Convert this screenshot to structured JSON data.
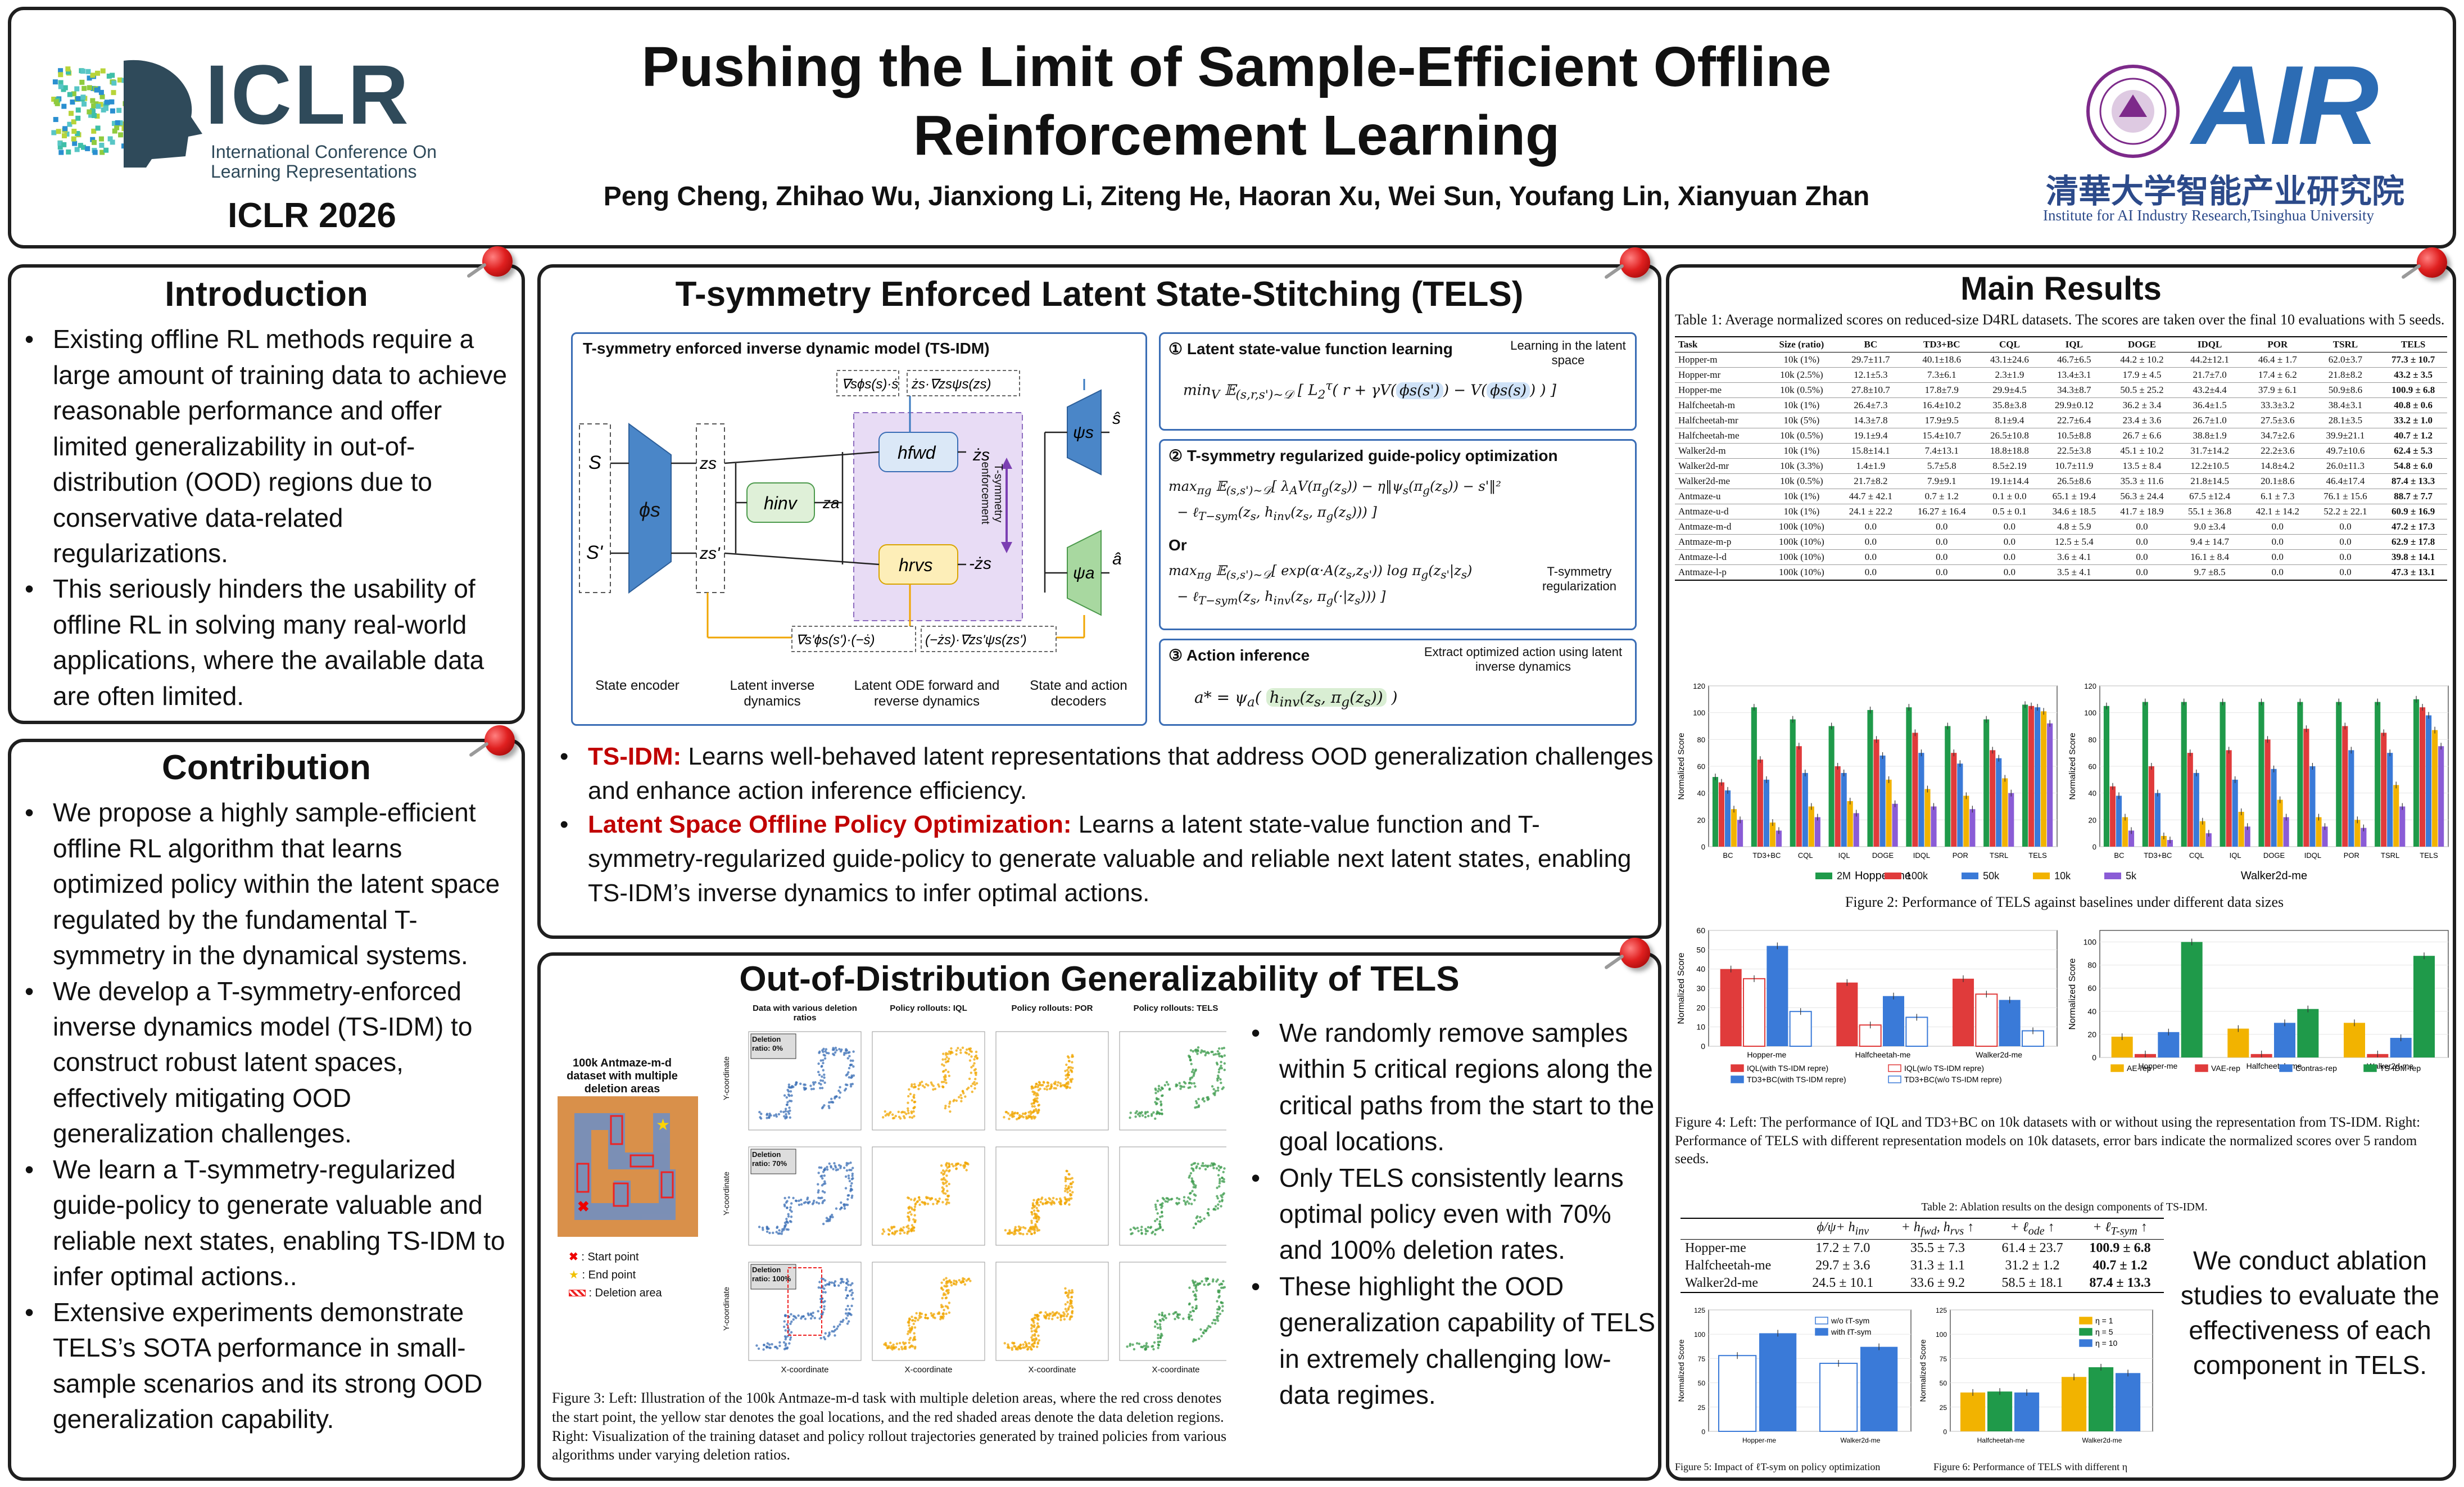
{
  "header": {
    "iclr_logo_text": "ICLR",
    "iclr_logo_sub": "International Conference On Learning Representations",
    "conference": "ICLR 2026",
    "title_line1": "Pushing the Limit of Sample-Efficient Offline",
    "title_line2": "Reinforcement Learning",
    "authors": "Peng Cheng, Zhihao Wu, Jianxiong Li, Ziteng He, Haoran Xu, Wei Sun, Youfang Lin, Xianyuan Zhan",
    "air_logo_text": "AIR",
    "air_cn_text": "清華大学智能产业研究院",
    "air_institute": "Institute for AI Industry Research,Tsinghua University"
  },
  "introduction": {
    "title": "Introduction",
    "bullets": [
      "Existing offline RL methods require a large amount of training data to achieve reasonable performance and offer limited generalizability in out-of-distribution (OOD) regions due to conservative data-related regularizations.",
      "This seriously hinders the usability of offline RL in solving many real-world applications, where the available data are often limited."
    ]
  },
  "contribution": {
    "title": "Contribution",
    "bullets": [
      "We propose a highly sample-efficient offline RL algorithm that learns optimized policy within the latent space regulated by the fundamental T-symmetry in the dynamical systems.",
      "We develop a T-symmetry-enforced inverse dynamics model (TS-IDM) to construct robust latent spaces, effectively mitigating OOD generalization challenges.",
      "We learn a T-symmetry-regularized guide-policy to generate valuable and reliable next states, enabling TS-IDM to infer optimal actions..",
      "Extensive experiments demonstrate TELS’s SOTA performance in small-sample scenarios and its strong OOD generalization capability."
    ]
  },
  "tels": {
    "title": "T-symmetry Enforced Latent State-Stitching (TELS)",
    "diagram": {
      "title": "T-symmetry enforced inverse dynamic model (TS-IDM)",
      "labels": {
        "state_encoder": "State encoder",
        "latent_inverse": "Latent inverse dynamics",
        "latent_ode": "Latent ODE forward and reverse dynamics",
        "decoders": "State and action decoders",
        "tsym_enf": "T-symmetry enforcement"
      },
      "step1": "Latent state-value function learning",
      "step1_note": "Learning in the latent space",
      "step2": "T-symmetry regularized guide-policy optimization",
      "step2_or": "Or",
      "step2_note": "T-symmetry regularization",
      "step3": "Action inference",
      "step3_note": "Extract optimized action using latent inverse dynamics"
    },
    "bullets": [
      {
        "head": "TS-IDM:",
        "text": " Learns well-behaved latent representations that address OOD generalization challenges and enhance action inference efficiency."
      },
      {
        "head": "Latent Space Offline Policy Optimization:",
        "text": " Learns a latent state-value function and T-symmetry-regularized guide-policy to generate valuable and reliable next latent states, enabling TS-IDM’s inverse dynamics to infer optimal actions."
      }
    ]
  },
  "ood": {
    "title": "Out-of-Distribution Generalizability of TELS",
    "map_title": "100k Antmaze-m-d dataset with multiple deletion areas",
    "legend": [
      "Start point",
      "End point",
      "Deletion area"
    ],
    "col_titles": [
      "Data with various deletion ratios",
      "Policy rollouts: IQL",
      "Policy rollouts: POR",
      "Policy rollouts: TELS"
    ],
    "row_labels": [
      "Deletion ratio: 0%",
      "Deletion ratio: 70%",
      "Deletion ratio: 100%"
    ],
    "xlabel": "X-coordinate",
    "ylabel": "Y-coordinate",
    "caption": "Figure 3: Left: Illustration of the 100k Antmaze-m-d task with multiple deletion areas, where the red cross denotes the start point, the yellow star denotes the goal locations, and the red shaded areas denote the data deletion regions. Right: Visualization of the training dataset and policy rollout trajectories generated by trained policies from various algorithms under varying deletion ratios.",
    "bullets": [
      "We randomly remove samples within 5 critical regions along the critical paths from the start to the goal  locations.",
      "Only TELS consistently learns optimal policy even with 70% and 100% deletion rates.",
      "These highlight the OOD generalization capability of TELS in extremely challenging low-data regimes."
    ]
  },
  "results": {
    "title": "Main Results",
    "table_caption": "Table 1:  Average normalized scores on reduced-size D4RL datasets. The scores are taken over the final 10 evaluations with 5 seeds.",
    "table_header": [
      "Task",
      "Size (ratio)",
      "BC",
      "TD3+BC",
      "CQL",
      "IQL",
      "DOGE",
      "IDQL",
      "POR",
      "TSRL",
      "TELS"
    ],
    "table_rows": [
      [
        "Hopper-m",
        "10k (1%)",
        "29.7±11.7",
        "40.1±18.6",
        "43.1±24.6",
        "46.7±6.5",
        "44.2 ± 10.2",
        "44.2±12.1",
        "46.4 ± 1.7",
        "62.0±3.7",
        "77.3 ± 10.7"
      ],
      [
        "Hopper-mr",
        "10k (2.5%)",
        "12.1±5.3",
        "7.3±6.1",
        "2.3±1.9",
        "13.4±3.1",
        "17.9 ± 4.5",
        "21.7±7.0",
        "17.4 ± 6.2",
        "21.8±8.2",
        "43.2 ± 3.5"
      ],
      [
        "Hopper-me",
        "10k (0.5%)",
        "27.8±10.7",
        "17.8±7.9",
        "29.9±4.5",
        "34.3±8.7",
        "50.5 ± 25.2",
        "43.2±4.4",
        "37.9 ± 6.1",
        "50.9±8.6",
        "100.9 ± 6.8"
      ],
      [
        "Halfcheetah-m",
        "10k (1%)",
        "26.4±7.3",
        "16.4±10.2",
        "35.8±3.8",
        "29.9±0.12",
        "36.2 ± 3.4",
        "36.4±1.5",
        "33.3±3.2",
        "38.4±3.1",
        "40.8 ± 0.6"
      ],
      [
        "Halfcheetah-mr",
        "10k (5%)",
        "14.3±7.8",
        "17.9±9.5",
        "8.1±9.4",
        "22.7±6.4",
        "23.4 ± 3.6",
        "26.7±1.0",
        "27.5±3.6",
        "28.1±3.5",
        "33.2 ± 1.0"
      ],
      [
        "Halfcheetah-me",
        "10k (0.5%)",
        "19.1±9.4",
        "15.4±10.7",
        "26.5±10.8",
        "10.5±8.8",
        "26.7 ± 6.6",
        "38.8±1.9",
        "34.7±2.6",
        "39.9±21.1",
        "40.7 ± 1.2"
      ],
      [
        "Walker2d-m",
        "10k (1%)",
        "15.8±14.1",
        "7.4±13.1",
        "18.8±18.8",
        "22.5±3.8",
        "45.1 ± 10.2",
        "31.7±14.2",
        "22.2±3.6",
        "49.7±10.6",
        "62.4 ± 5.3"
      ],
      [
        "Walker2d-mr",
        "10k (3.3%)",
        "1.4±1.9",
        "5.7±5.8",
        "8.5±2.19",
        "10.7±11.9",
        "13.5 ± 8.4",
        "12.2±10.5",
        "14.8±4.2",
        "26.0±11.3",
        "54.8 ± 6.0"
      ],
      [
        "Walker2d-me",
        "10k (0.5%)",
        "21.7±8.2",
        "7.9±9.1",
        "19.1±14.4",
        "26.5±8.6",
        "35.3 ± 11.6",
        "21.8±14.5",
        "20.1±8.6",
        "46.4±17.4",
        "87.4 ± 13.3"
      ],
      [
        "Antmaze-u",
        "10k (1%)",
        "44.7 ± 42.1",
        "0.7 ± 1.2",
        "0.1 ± 0.0",
        "65.1 ± 19.4",
        "56.3 ± 24.4",
        "67.5 ±12.4",
        "6.1 ± 7.3",
        "76.1 ± 15.6",
        "88.7 ± 7.7"
      ],
      [
        "Antmaze-u-d",
        "10k (1%)",
        "24.1 ± 22.2",
        "16.27 ± 16.4",
        "0.5 ± 0.1",
        "34.6 ± 18.5",
        "41.7 ± 18.9",
        "55.1 ± 36.8",
        "42.1 ± 14.2",
        "52.2 ± 22.1",
        "60.9 ± 16.9"
      ],
      [
        "Antmaze-m-d",
        "100k (10%)",
        "0.0",
        "0.0",
        "0.0",
        "4.8 ± 5.9",
        "0.0",
        "9.0 ±3.4",
        "0.0",
        "0.0",
        "47.2 ± 17.3"
      ],
      [
        "Antmaze-m-p",
        "100k (10%)",
        "0.0",
        "0.0",
        "0.0",
        "12.5 ± 5.4",
        "0.0",
        "9.4 ± 14.7",
        "0.0",
        "0.0",
        "62.9 ± 17.8"
      ],
      [
        "Antmaze-l-d",
        "100k (10%)",
        "0.0",
        "0.0",
        "0.0",
        "3.6 ± 4.1",
        "0.0",
        "16.1 ± 8.4",
        "0.0",
        "0.0",
        "39.8 ± 14.1"
      ],
      [
        "Antmaze-l-p",
        "100k (10%)",
        "0.0",
        "0.0",
        "0.0",
        "3.5 ± 4.1",
        "0.0",
        "9.7 ±8.5",
        "0.0",
        "0.0",
        "47.3 ± 13.1"
      ]
    ],
    "fig2_caption": "Figure 2: Performance of TELS against baselines under different data sizes",
    "fig2_legend": [
      "2M",
      "100k",
      "50k",
      "10k",
      "5k"
    ],
    "fig4_caption": "Figure 4: Left: The performance of IQL and TD3+BC on 10k datasets with or without using the representation from TS-IDM. Right: Performance of TELS with different representation models on 10k datasets, error bars indicate the normalized scores over 5 random seeds.",
    "table2_caption": "Table 2:  Ablation results on the design components of TS-IDM.",
    "table2_rows": [
      [
        "Hopper-me",
        "17.2 ± 7.0",
        "35.5 ± 7.3",
        "61.4 ± 23.7",
        "100.9 ± 6.8"
      ],
      [
        "Halfcheetah-me",
        "29.7 ± 3.6",
        "31.3 ± 1.1",
        "31.2 ± 1.2",
        "40.7 ± 1.2"
      ],
      [
        "Walker2d-me",
        "24.5 ± 10.1",
        "33.6 ± 9.2",
        "58.5 ± 18.1",
        "87.4 ± 13.3"
      ]
    ],
    "fig5_caption": "Figure 5: Impact of ℓT-sym on policy optimization",
    "fig6_caption": "Figure 6: Performance of TELS with different η",
    "ablation_note": "We conduct ablation studies to evaluate the effectiveness of each component in TELS."
  },
  "chart_data": [
    {
      "type": "bar",
      "id": "fig2-hopper-me",
      "xlabel": "Hopper-me",
      "ylabel": "Normalized Score",
      "ylim": [
        0,
        120
      ],
      "categories": [
        "BC",
        "TD3+BC",
        "CQL",
        "IQL",
        "DOGE",
        "IDQL",
        "POR",
        "TSRL",
        "TELS"
      ],
      "series": [
        {
          "name": "2M",
          "values": [
            52,
            104,
            95,
            90,
            102,
            104,
            90,
            95,
            106
          ]
        },
        {
          "name": "100k",
          "values": [
            48,
            65,
            75,
            60,
            80,
            85,
            70,
            72,
            105
          ]
        },
        {
          "name": "50k",
          "values": [
            42,
            50,
            55,
            55,
            68,
            70,
            62,
            66,
            104
          ]
        },
        {
          "name": "10k",
          "values": [
            28,
            18,
            30,
            34,
            50,
            43,
            38,
            51,
            101
          ]
        },
        {
          "name": "5k",
          "values": [
            20,
            12,
            22,
            25,
            32,
            30,
            28,
            40,
            92
          ]
        }
      ]
    },
    {
      "type": "bar",
      "id": "fig2-walker2d-me",
      "xlabel": "Walker2d-me",
      "ylabel": "Normalized Score",
      "ylim": [
        0,
        120
      ],
      "categories": [
        "BC",
        "TD3+BC",
        "CQL",
        "IQL",
        "DOGE",
        "IDQL",
        "POR",
        "TSRL",
        "TELS"
      ],
      "series": [
        {
          "name": "2M",
          "values": [
            105,
            108,
            108,
            108,
            108,
            108,
            108,
            108,
            110
          ]
        },
        {
          "name": "100k",
          "values": [
            45,
            60,
            70,
            72,
            80,
            88,
            90,
            85,
            104
          ]
        },
        {
          "name": "50k",
          "values": [
            38,
            40,
            55,
            50,
            58,
            60,
            72,
            70,
            98
          ]
        },
        {
          "name": "10k",
          "values": [
            22,
            8,
            19,
            26,
            35,
            22,
            20,
            46,
            87
          ]
        },
        {
          "name": "5k",
          "values": [
            12,
            5,
            10,
            15,
            22,
            15,
            14,
            30,
            75
          ]
        }
      ]
    },
    {
      "type": "bar",
      "id": "fig4-left",
      "ylabel": "Normalized Score",
      "ylim": [
        0,
        60
      ],
      "categories": [
        "Hopper-me",
        "Halfcheetah-me",
        "Walker2d-me"
      ],
      "series": [
        {
          "name": "IQL(with TS-IDM repre)",
          "values": [
            40,
            33,
            35
          ]
        },
        {
          "name": "IQL(w/o TS-IDM repre)",
          "values": [
            35,
            11,
            27
          ]
        },
        {
          "name": "TD3+BC(with TS-IDM repre)",
          "values": [
            52,
            26,
            24
          ]
        },
        {
          "name": "TD3+BC(w/o TS-IDM repre)",
          "values": [
            18,
            15,
            8
          ]
        }
      ]
    },
    {
      "type": "bar",
      "id": "fig4-right",
      "ylabel": "Normalized Score",
      "ylim": [
        0,
        110
      ],
      "categories": [
        "Hopper-me",
        "Halfcheetah-me",
        "Walker2d-me"
      ],
      "series": [
        {
          "name": "AE-rep",
          "values": [
            18,
            25,
            30
          ]
        },
        {
          "name": "VAE-rep",
          "values": [
            3,
            3,
            3
          ]
        },
        {
          "name": "Contras-rep",
          "values": [
            22,
            30,
            17
          ]
        },
        {
          "name": "TS-IDM-rep",
          "values": [
            100,
            42,
            88
          ]
        }
      ]
    },
    {
      "type": "bar",
      "id": "fig5",
      "ylabel": "Normalized Score",
      "ylim": [
        0,
        125
      ],
      "categories": [
        "Hopper-me",
        "Walker2d-me"
      ],
      "series": [
        {
          "name": "w/o ℓT-sym",
          "values": [
            78,
            70
          ]
        },
        {
          "name": "with ℓT-sym",
          "values": [
            101,
            87
          ]
        }
      ]
    },
    {
      "type": "bar",
      "id": "fig6",
      "ylabel": "Normalized Score",
      "ylim": [
        0,
        125
      ],
      "categories": [
        "Halfcheetah-me",
        "Walker2d-me"
      ],
      "series": [
        {
          "name": "η = 1",
          "values": [
            40,
            56
          ]
        },
        {
          "name": "η = 5",
          "values": [
            41,
            66
          ]
        },
        {
          "name": "η = 10",
          "values": [
            40,
            60
          ]
        }
      ]
    }
  ]
}
